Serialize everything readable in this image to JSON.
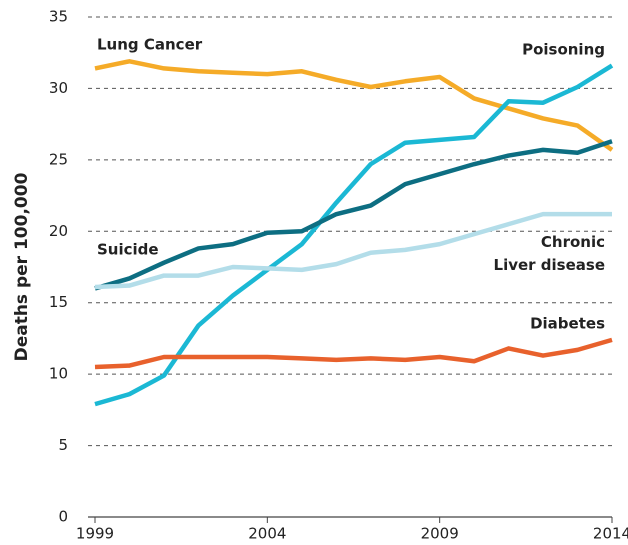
{
  "chart_data": {
    "type": "line",
    "ylabel": "Deaths per 100,000",
    "x": [
      1999,
      2000,
      2001,
      2002,
      2003,
      2004,
      2005,
      2006,
      2007,
      2008,
      2009,
      2010,
      2011,
      2012,
      2013,
      2014
    ],
    "xlim": [
      1999,
      2014
    ],
    "xticks": [
      1999,
      2004,
      2009,
      2014
    ],
    "ylim": [
      0,
      35
    ],
    "yticks": [
      0,
      5,
      10,
      15,
      20,
      25,
      30,
      35
    ],
    "grid": true,
    "series": [
      {
        "name": "Lung Cancer",
        "color": "#f5ab28",
        "values": [
          31.4,
          31.9,
          31.4,
          31.2,
          31.1,
          31.0,
          31.2,
          30.6,
          30.1,
          30.5,
          30.8,
          29.3,
          28.6,
          27.9,
          27.4,
          25.7
        ]
      },
      {
        "name": "Poisoning",
        "color": "#1bb8d4",
        "values": [
          7.9,
          8.6,
          9.9,
          13.4,
          15.5,
          17.3,
          19.1,
          22.0,
          24.7,
          26.2,
          26.4,
          26.6,
          29.1,
          29.0,
          30.1,
          31.6
        ]
      },
      {
        "name": "Suicide",
        "color": "#0d6e82",
        "values": [
          16.0,
          16.7,
          17.8,
          18.8,
          19.1,
          19.9,
          20.0,
          21.2,
          21.8,
          23.3,
          24.0,
          24.7,
          25.3,
          25.7,
          25.5,
          26.3
        ]
      },
      {
        "name": "Chronic Liver disease",
        "color": "#b3dde9",
        "values": [
          16.1,
          16.2,
          16.9,
          16.9,
          17.5,
          17.4,
          17.3,
          17.7,
          18.5,
          18.7,
          19.1,
          19.8,
          20.5,
          21.2,
          21.2,
          21.2
        ]
      },
      {
        "name": "Diabetes",
        "color": "#e8612c",
        "values": [
          10.5,
          10.6,
          11.2,
          11.2,
          11.2,
          11.2,
          11.1,
          11.0,
          11.1,
          11.0,
          11.2,
          10.9,
          11.8,
          11.3,
          11.7,
          12.4
        ]
      }
    ]
  }
}
